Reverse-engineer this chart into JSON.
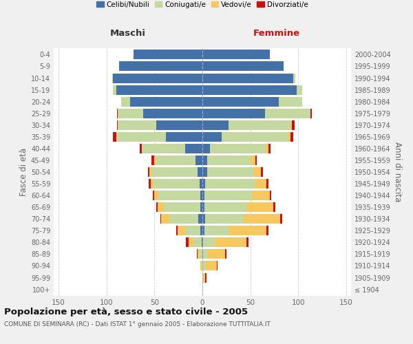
{
  "age_groups": [
    "100+",
    "95-99",
    "90-94",
    "85-89",
    "80-84",
    "75-79",
    "70-74",
    "65-69",
    "60-64",
    "55-59",
    "50-54",
    "45-49",
    "40-44",
    "35-39",
    "30-34",
    "25-29",
    "20-24",
    "15-19",
    "10-14",
    "5-9",
    "0-4"
  ],
  "birth_years": [
    "≤ 1904",
    "1905-1909",
    "1910-1914",
    "1915-1919",
    "1920-1924",
    "1925-1929",
    "1930-1934",
    "1935-1939",
    "1940-1944",
    "1945-1949",
    "1950-1954",
    "1955-1959",
    "1960-1964",
    "1965-1969",
    "1970-1974",
    "1975-1979",
    "1980-1984",
    "1985-1989",
    "1990-1994",
    "1995-1999",
    "2000-2004"
  ],
  "male": {
    "celibi": [
      0,
      0,
      0,
      0,
      1,
      2,
      4,
      2,
      2,
      3,
      5,
      7,
      18,
      38,
      48,
      62,
      75,
      90,
      93,
      87,
      72
    ],
    "coniugati": [
      0,
      0,
      1,
      3,
      8,
      16,
      30,
      38,
      44,
      48,
      48,
      42,
      45,
      52,
      40,
      26,
      10,
      3,
      1,
      0,
      0
    ],
    "vedovi": [
      0,
      0,
      1,
      2,
      5,
      8,
      9,
      7,
      4,
      3,
      2,
      1,
      0,
      0,
      0,
      0,
      0,
      0,
      0,
      0,
      0
    ],
    "divorziati": [
      0,
      0,
      0,
      1,
      3,
      1,
      1,
      1,
      2,
      2,
      2,
      3,
      2,
      3,
      1,
      1,
      0,
      0,
      0,
      0,
      0
    ]
  },
  "female": {
    "nubili": [
      0,
      0,
      0,
      1,
      1,
      2,
      3,
      2,
      2,
      3,
      5,
      5,
      8,
      20,
      27,
      65,
      80,
      98,
      95,
      85,
      70
    ],
    "coniugate": [
      0,
      1,
      3,
      5,
      12,
      25,
      40,
      45,
      50,
      52,
      48,
      45,
      58,
      70,
      65,
      48,
      24,
      6,
      2,
      0,
      0
    ],
    "vedove": [
      0,
      2,
      12,
      18,
      33,
      40,
      38,
      27,
      18,
      12,
      8,
      5,
      3,
      2,
      1,
      0,
      0,
      0,
      0,
      0,
      0
    ],
    "divorziate": [
      0,
      1,
      1,
      1,
      2,
      2,
      2,
      2,
      2,
      2,
      2,
      2,
      2,
      3,
      3,
      1,
      0,
      0,
      0,
      0,
      0
    ]
  },
  "colors": {
    "celibi": "#4472a8",
    "coniugati": "#c5d8a0",
    "vedovi": "#f5c860",
    "divorziati": "#cc1111"
  },
  "xlim": 155,
  "title": "Popolazione per età, sesso e stato civile - 2005",
  "subtitle": "COMUNE DI SEMINARA (RC) - Dati ISTAT 1° gennaio 2005 - Elaborazione TUTTITALIA.IT",
  "xlabel_left": "Maschi",
  "xlabel_right": "Femmine",
  "ylabel_left": "Fasce di età",
  "ylabel_right": "Anni di nascita",
  "bg_color": "#f0f0f0",
  "plot_bg": "#ffffff"
}
